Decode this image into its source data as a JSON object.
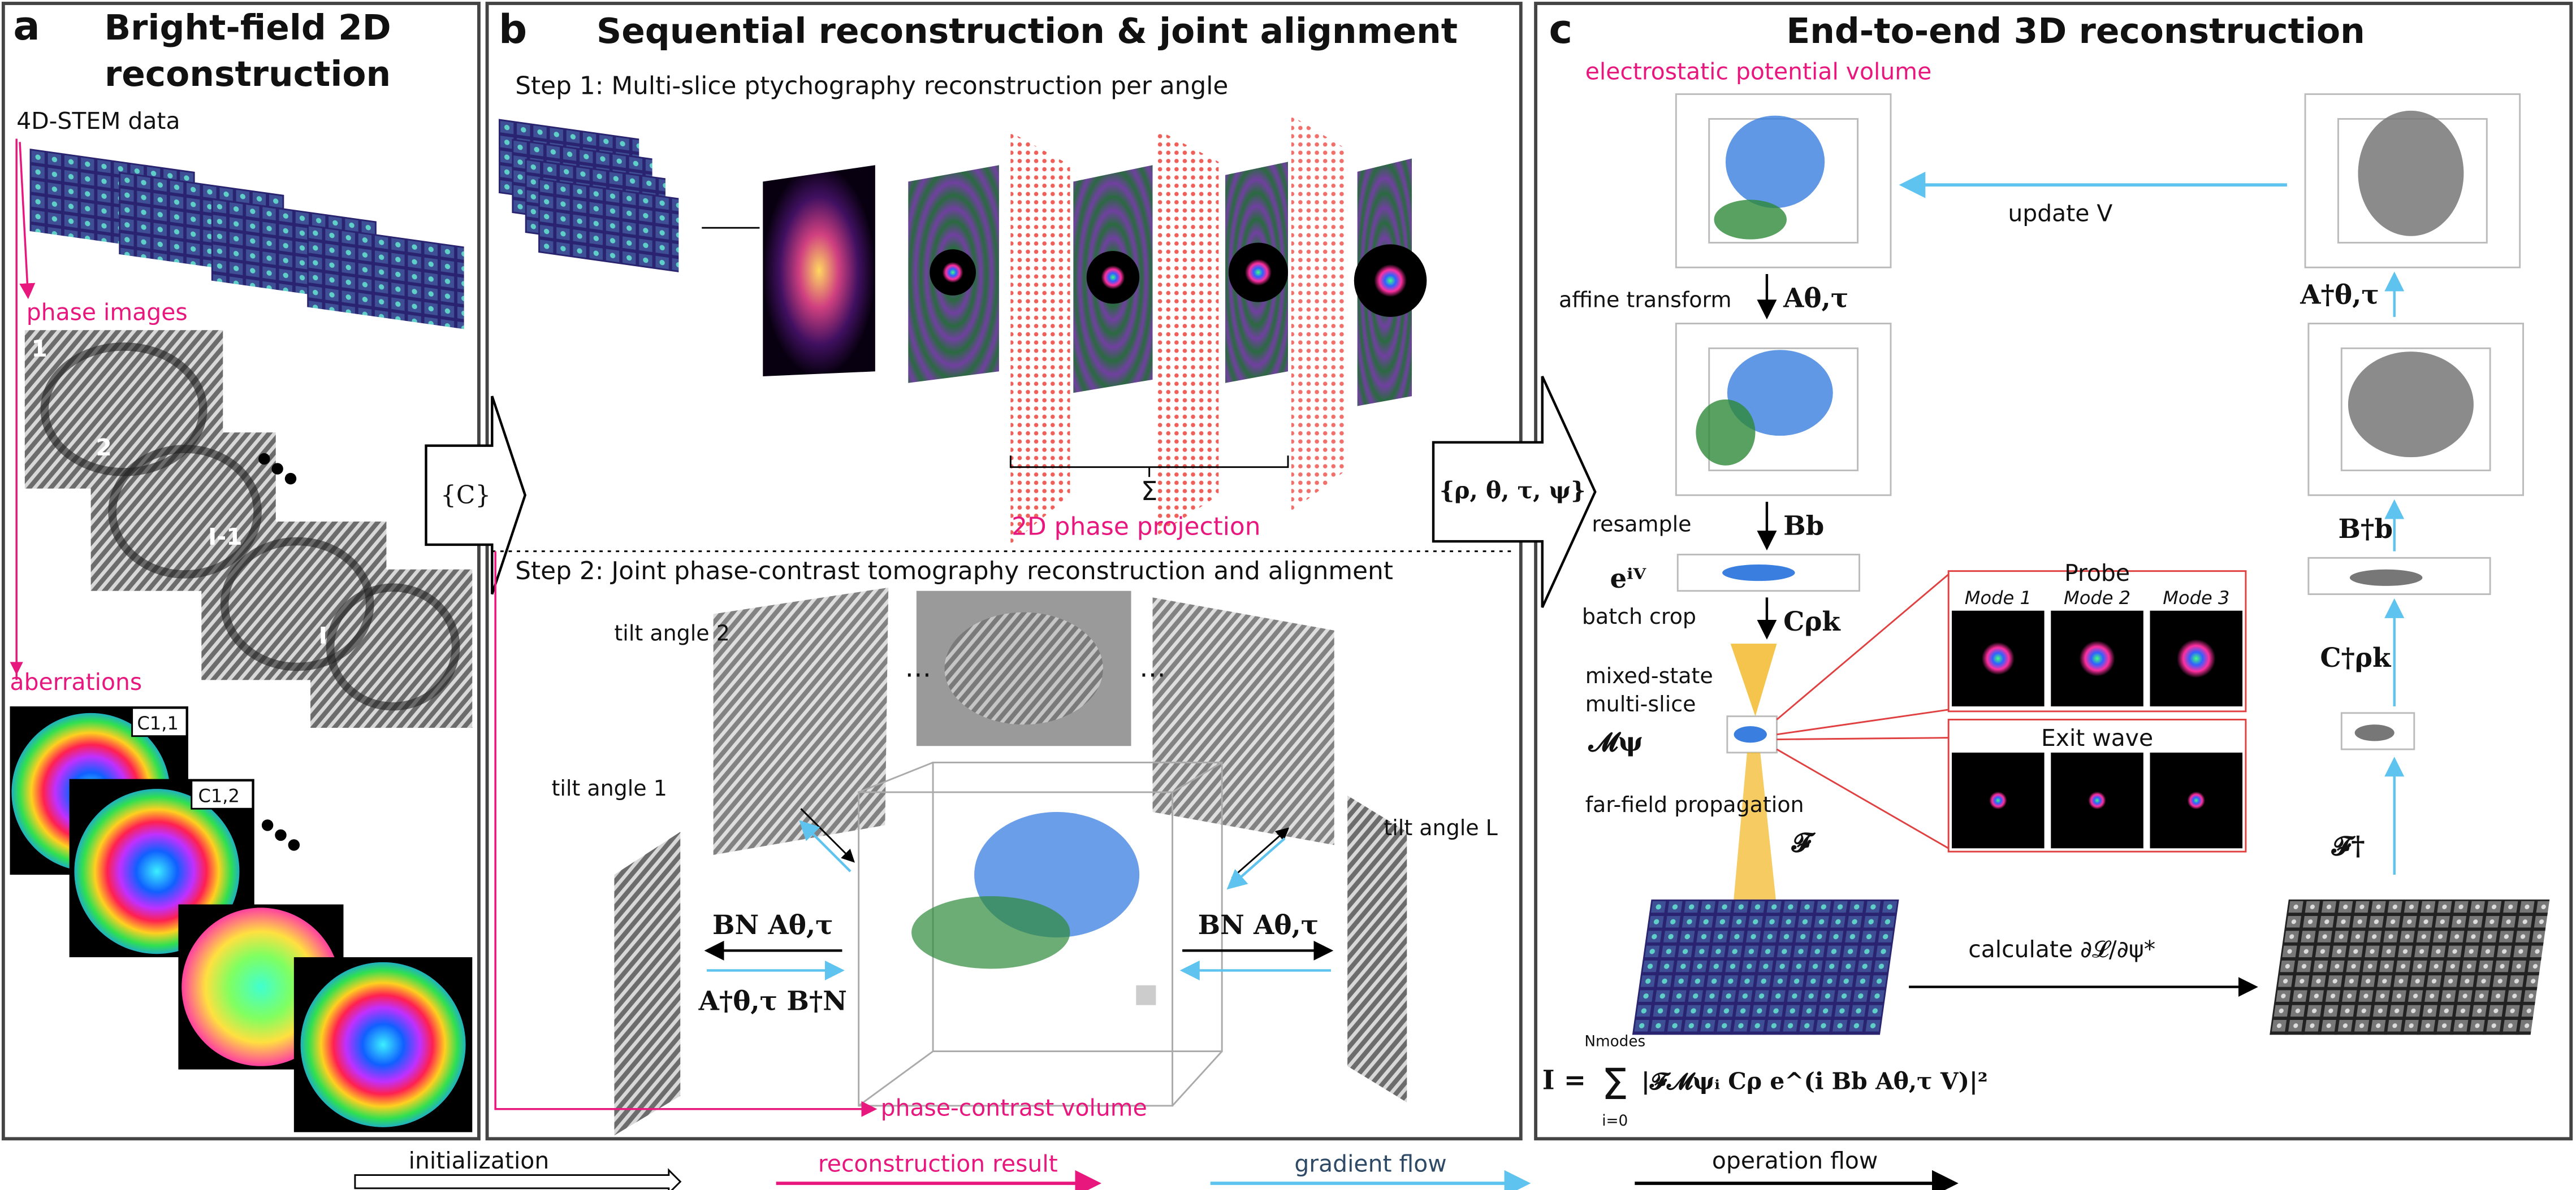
{
  "panel_a": {
    "label": "a",
    "title_lines": [
      "Bright-field 2D",
      "reconstruction"
    ],
    "data_label": "4D-STEM data",
    "phase_images_label": "phase images",
    "image_indices": [
      "1",
      "2",
      "I-1",
      "I"
    ],
    "aberrations_label": "aberrations",
    "aberration_labels": [
      "C1,1",
      "C1,2"
    ]
  },
  "connector_ab": "{C}",
  "panel_b": {
    "label": "b",
    "title": "Sequential reconstruction & joint alignment",
    "step1": "Step 1: Multi-slice ptychography reconstruction per angle",
    "sum_symbol": "Σ",
    "projection_label": "2D phase projection",
    "step2": "Step 2: Joint phase-contrast tomography reconstruction and alignment",
    "tilt_labels": [
      "tilt angle 2",
      "tilt angle 1",
      "tilt angle L"
    ],
    "forward_op": "BN Aθ,τ",
    "adjoint_op": "A†θ,τ B†N",
    "volume_label": "phase-contrast volume"
  },
  "connector_bc": "{ρ, θ, τ, ψ}",
  "panel_c": {
    "label": "c",
    "title": "End-to-end 3D reconstruction",
    "volume_label": "electrostatic potential volume",
    "update_label": "update V",
    "steps": [
      {
        "name": "affine transform",
        "op": "Aθ,τ",
        "adjoint": "A†θ,τ"
      },
      {
        "name": "resample",
        "op": "Bb",
        "adjoint": "B†b"
      },
      {
        "name": "batch crop",
        "op": "Cρk",
        "adjoint": "C†ρk"
      },
      {
        "name": "far-field propagation",
        "op": "𝓕",
        "adjoint": "𝓕†"
      }
    ],
    "exp_label": "eⁱⱽ",
    "mixed_state_lines": [
      "mixed-state",
      "multi-slice"
    ],
    "mixed_state_op": "𝓜ψ",
    "probe_label": "Probe",
    "mode_labels": [
      "Mode 1",
      "Mode 2",
      "Mode 3"
    ],
    "exit_wave_label": "Exit wave",
    "gradient_label": "calculate ∂𝓛/∂ψ*",
    "formula": {
      "lhs": "I =",
      "sum": "Σ",
      "upper": "Nmodes",
      "lower": "i=0",
      "body": "|𝓕𝓜ψᵢ Cρ e^(i Bb Aθ,τ V)|²"
    }
  },
  "legend": [
    "initialization",
    "reconstruction result",
    "gradient flow",
    "operation flow"
  ]
}
